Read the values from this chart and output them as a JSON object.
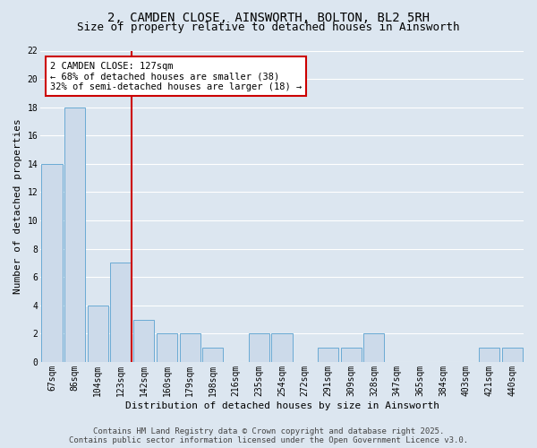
{
  "title": "2, CAMDEN CLOSE, AINSWORTH, BOLTON, BL2 5RH",
  "subtitle": "Size of property relative to detached houses in Ainsworth",
  "xlabel": "Distribution of detached houses by size in Ainsworth",
  "ylabel": "Number of detached properties",
  "categories": [
    "67sqm",
    "86sqm",
    "104sqm",
    "123sqm",
    "142sqm",
    "160sqm",
    "179sqm",
    "198sqm",
    "216sqm",
    "235sqm",
    "254sqm",
    "272sqm",
    "291sqm",
    "309sqm",
    "328sqm",
    "347sqm",
    "365sqm",
    "384sqm",
    "403sqm",
    "421sqm",
    "440sqm"
  ],
  "values": [
    14,
    18,
    4,
    7,
    3,
    2,
    2,
    1,
    0,
    2,
    2,
    0,
    1,
    1,
    2,
    0,
    0,
    0,
    0,
    1,
    1
  ],
  "bar_color": "#ccdaea",
  "bar_edge_color": "#6aaad4",
  "background_color": "#dce6f0",
  "grid_color": "#ffffff",
  "vline_x_index": 3,
  "vline_color": "#cc0000",
  "annotation_text": "2 CAMDEN CLOSE: 127sqm\n← 68% of detached houses are smaller (38)\n32% of semi-detached houses are larger (18) →",
  "annotation_box_color": "#ffffff",
  "annotation_box_edge": "#cc0000",
  "ylim": [
    0,
    22
  ],
  "yticks": [
    0,
    2,
    4,
    6,
    8,
    10,
    12,
    14,
    16,
    18,
    20,
    22
  ],
  "footer": "Contains HM Land Registry data © Crown copyright and database right 2025.\nContains public sector information licensed under the Open Government Licence v3.0.",
  "title_fontsize": 10,
  "subtitle_fontsize": 9,
  "axis_label_fontsize": 8,
  "tick_fontsize": 7,
  "annotation_fontsize": 7.5,
  "footer_fontsize": 6.5
}
